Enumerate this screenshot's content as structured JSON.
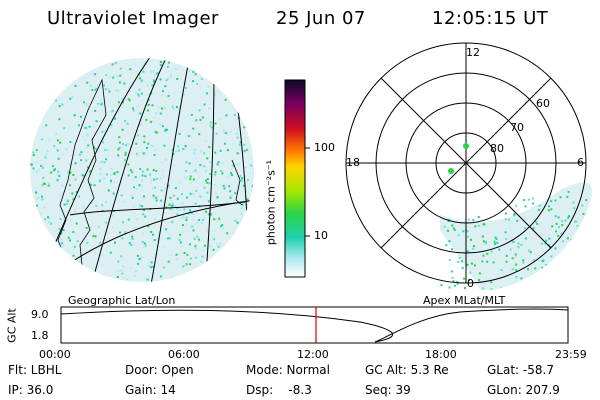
{
  "header": {
    "instrument": "Ultraviolet Imager",
    "date": "25 Jun 07",
    "time": "12:05:15 UT"
  },
  "colorbar": {
    "unit_label": "photon cm⁻²s⁻¹",
    "ticks": [
      "100",
      "10"
    ]
  },
  "polar_plot": {
    "mlt_labels": {
      "top": "12",
      "left": "18",
      "right": "6",
      "bottom": "0"
    },
    "lat_labels": [
      "60",
      "70",
      "80"
    ]
  },
  "projections": {
    "left": "Geographic Lat/Lon",
    "right": "Apex MLat/MLT"
  },
  "altitude_plot": {
    "axis_label": "GC Alt",
    "y_ticks": [
      "9.0",
      "1.8"
    ],
    "x_ticks": [
      "00:00",
      "06:00",
      "12:00",
      "18:00",
      "23:59"
    ],
    "current_time_marker": "12:05"
  },
  "status": {
    "flt": "Flt: LBHL",
    "ip": "IP: 36.0",
    "door": "Door: Open",
    "gain": "Gain: 14",
    "mode": "Mode: Normal",
    "dsp": "Dsp:    -8.3",
    "gc_alt": "GC Alt: 5.3 Re",
    "seq": "Seq: 39",
    "glat": "GLat: -58.7",
    "glon": "GLon: 207.9"
  }
}
